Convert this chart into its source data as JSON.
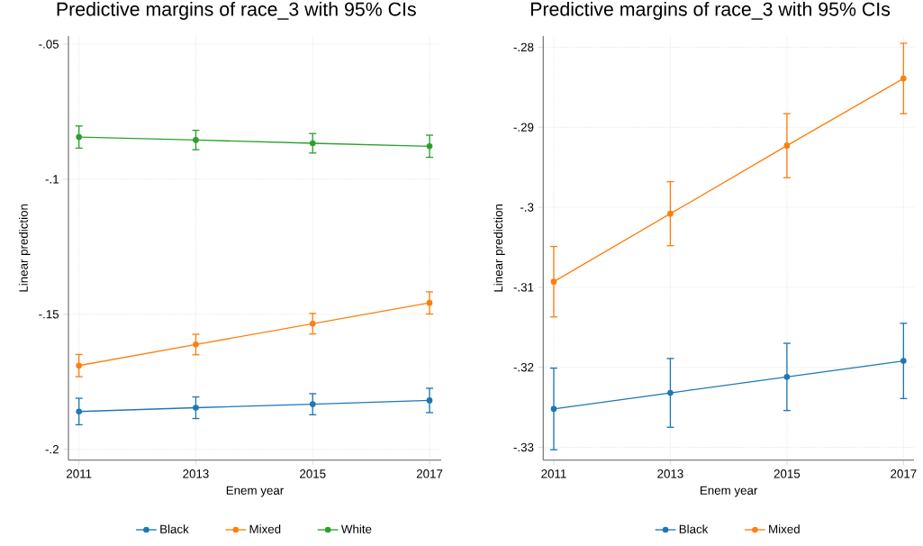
{
  "chart_data": [
    {
      "type": "line",
      "title": "Predictive margins of race_3 with 95% CIs",
      "xlabel": "Enem year",
      "ylabel": "Linear prediction",
      "x": [
        2011,
        2013,
        2015,
        2017
      ],
      "xlim": [
        2010.82,
        2017.2
      ],
      "xticks": [
        2011,
        2013,
        2015,
        2017
      ],
      "ylim": [
        -0.204,
        -0.047
      ],
      "yticks": [
        {
          "value": -0.2,
          "label": "-.2"
        },
        {
          "value": -0.15,
          "label": "-.15"
        },
        {
          "value": -0.1,
          "label": "-.1"
        },
        {
          "value": -0.05,
          "label": "-.05"
        }
      ],
      "grid": true,
      "legend": "bottom",
      "marker": "circle",
      "series": [
        {
          "name": "Black",
          "color": "#1f77b4",
          "values": [
            -0.186,
            -0.1846,
            -0.1833,
            -0.1819
          ],
          "errors": [
            0.0049,
            0.004,
            0.0039,
            0.0045
          ]
        },
        {
          "name": "Mixed",
          "color": "#ff7f0e",
          "values": [
            -0.169,
            -0.1612,
            -0.1535,
            -0.1458
          ],
          "errors": [
            0.0041,
            0.0038,
            0.0038,
            0.0041
          ]
        },
        {
          "name": "White",
          "color": "#2ca02c",
          "values": [
            -0.0844,
            -0.0855,
            -0.0867,
            -0.0878
          ],
          "errors": [
            0.0041,
            0.0036,
            0.0036,
            0.0041
          ]
        }
      ]
    },
    {
      "type": "line",
      "title": "Predictive margins of race_3 with 95% CIs",
      "xlabel": "Enem year",
      "ylabel": "Linear prediction",
      "x": [
        2011,
        2013,
        2015,
        2017
      ],
      "xlim": [
        2010.82,
        2017.18
      ],
      "xticks": [
        2011,
        2013,
        2015,
        2017
      ],
      "ylim": [
        -0.3316,
        -0.2786
      ],
      "yticks": [
        {
          "value": -0.33,
          "label": "-.33"
        },
        {
          "value": -0.32,
          "label": "-.32"
        },
        {
          "value": -0.31,
          "label": "-.31"
        },
        {
          "value": -0.3,
          "label": "-.3"
        },
        {
          "value": -0.29,
          "label": "-.29"
        },
        {
          "value": -0.28,
          "label": "-.28"
        }
      ],
      "grid": true,
      "legend": "bottom",
      "marker": "circle",
      "series": [
        {
          "name": "Black",
          "color": "#1f77b4",
          "values": [
            -0.3252,
            -0.3232,
            -0.3212,
            -0.3192
          ],
          "errors": [
            0.0051,
            0.0043,
            0.0042,
            0.0047
          ]
        },
        {
          "name": "Mixed",
          "color": "#ff7f0e",
          "values": [
            -0.3093,
            -0.3008,
            -0.2923,
            -0.2839
          ],
          "errors": [
            0.0044,
            0.004,
            0.004,
            0.0044
          ]
        }
      ]
    }
  ]
}
